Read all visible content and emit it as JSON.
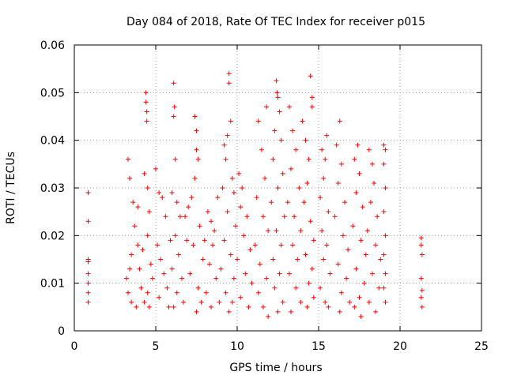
{
  "chart_data": {
    "type": "scatter",
    "title": "Day 084 of 2018, Rate Of TEC Index for receiver p015",
    "xlabel": "GPS time / hours",
    "ylabel": "ROTI / TECUs",
    "xlim": [
      0,
      25
    ],
    "ylim": [
      0,
      0.06
    ],
    "xticks": [
      "0",
      "5",
      "10",
      "15",
      "20",
      "25"
    ],
    "yticks": [
      "0",
      "0.01",
      "0.02",
      "0.03",
      "0.04",
      "0.05",
      "0.06"
    ],
    "grid": true,
    "marker": "plus",
    "color": "#ff0000",
    "series": [
      {
        "values": [
          [
            0.85,
            0.029
          ],
          [
            0.85,
            0.023
          ],
          [
            0.85,
            0.015
          ],
          [
            0.85,
            0.0145
          ],
          [
            0.85,
            0.012
          ],
          [
            0.85,
            0.01
          ],
          [
            0.85,
            0.008
          ],
          [
            0.85,
            0.006
          ],
          [
            3.3,
            0.036
          ],
          [
            3.4,
            0.032
          ],
          [
            3.6,
            0.027
          ],
          [
            3.9,
            0.026
          ],
          [
            3.7,
            0.022
          ],
          [
            3.5,
            0.016
          ],
          [
            3.4,
            0.013
          ],
          [
            3.2,
            0.011
          ],
          [
            3.3,
            0.008
          ],
          [
            3.5,
            0.006
          ],
          [
            3.8,
            0.005
          ],
          [
            4.1,
            0.009
          ],
          [
            4.0,
            0.013
          ],
          [
            3.9,
            0.018
          ],
          [
            4.4,
            0.05
          ],
          [
            4.4,
            0.048
          ],
          [
            4.45,
            0.046
          ],
          [
            4.45,
            0.044
          ],
          [
            4.3,
            0.033
          ],
          [
            4.5,
            0.03
          ],
          [
            4.6,
            0.025
          ],
          [
            4.5,
            0.02
          ],
          [
            4.2,
            0.017
          ],
          [
            4.7,
            0.014
          ],
          [
            4.8,
            0.011
          ],
          [
            4.5,
            0.008
          ],
          [
            4.3,
            0.006
          ],
          [
            4.6,
            0.005
          ],
          [
            5.0,
            0.034
          ],
          [
            5.2,
            0.029
          ],
          [
            5.4,
            0.028
          ],
          [
            5.6,
            0.024
          ],
          [
            5.1,
            0.018
          ],
          [
            5.3,
            0.015
          ],
          [
            5.5,
            0.012
          ],
          [
            5.7,
            0.009
          ],
          [
            5.2,
            0.007
          ],
          [
            5.8,
            0.005
          ],
          [
            5.9,
            0.019
          ],
          [
            6.1,
            0.052
          ],
          [
            6.15,
            0.047
          ],
          [
            6.1,
            0.045
          ],
          [
            6.2,
            0.036
          ],
          [
            6.0,
            0.029
          ],
          [
            6.3,
            0.027
          ],
          [
            6.5,
            0.024
          ],
          [
            6.2,
            0.02
          ],
          [
            6.4,
            0.016
          ],
          [
            6.0,
            0.013
          ],
          [
            6.6,
            0.011
          ],
          [
            6.3,
            0.008
          ],
          [
            6.1,
            0.005
          ],
          [
            6.7,
            0.006
          ],
          [
            6.9,
            0.019
          ],
          [
            6.8,
            0.024
          ],
          [
            7.4,
            0.045
          ],
          [
            7.5,
            0.042
          ],
          [
            7.5,
            0.038
          ],
          [
            7.6,
            0.036
          ],
          [
            7.4,
            0.032
          ],
          [
            7.2,
            0.028
          ],
          [
            7.0,
            0.026
          ],
          [
            7.7,
            0.022
          ],
          [
            7.3,
            0.018
          ],
          [
            7.9,
            0.015
          ],
          [
            7.1,
            0.012
          ],
          [
            7.6,
            0.009
          ],
          [
            7.8,
            0.006
          ],
          [
            7.5,
            0.004
          ],
          [
            8.0,
            0.019
          ],
          [
            8.2,
            0.025
          ],
          [
            8.4,
            0.023
          ],
          [
            8.6,
            0.021
          ],
          [
            8.8,
            0.028
          ],
          [
            8.5,
            0.018
          ],
          [
            8.3,
            0.014
          ],
          [
            8.7,
            0.011
          ],
          [
            8.1,
            0.008
          ],
          [
            8.9,
            0.006
          ],
          [
            8.4,
            0.005
          ],
          [
            9.2,
            0.039
          ],
          [
            9.4,
            0.041
          ],
          [
            9.5,
            0.054
          ],
          [
            9.5,
            0.052
          ],
          [
            9.6,
            0.044
          ],
          [
            9.3,
            0.036
          ],
          [
            9.7,
            0.032
          ],
          [
            9.1,
            0.03
          ],
          [
            9.8,
            0.029
          ],
          [
            9.4,
            0.025
          ],
          [
            9.9,
            0.022
          ],
          [
            9.2,
            0.019
          ],
          [
            9.6,
            0.016
          ],
          [
            9.0,
            0.013
          ],
          [
            9.8,
            0.011
          ],
          [
            9.3,
            0.008
          ],
          [
            9.7,
            0.006
          ],
          [
            9.5,
            0.004
          ],
          [
            10.1,
            0.033
          ],
          [
            10.3,
            0.03
          ],
          [
            10.2,
            0.026
          ],
          [
            10.6,
            0.024
          ],
          [
            10.4,
            0.02
          ],
          [
            10.8,
            0.017
          ],
          [
            10.0,
            0.015
          ],
          [
            10.5,
            0.012
          ],
          [
            10.9,
            0.01
          ],
          [
            10.2,
            0.007
          ],
          [
            10.7,
            0.005
          ],
          [
            11.3,
            0.044
          ],
          [
            11.5,
            0.038
          ],
          [
            11.7,
            0.032
          ],
          [
            11.2,
            0.028
          ],
          [
            11.6,
            0.024
          ],
          [
            11.9,
            0.021
          ],
          [
            11.1,
            0.018
          ],
          [
            11.4,
            0.014
          ],
          [
            11.8,
            0.011
          ],
          [
            11.3,
            0.008
          ],
          [
            11.6,
            0.005
          ],
          [
            11.9,
            0.003
          ],
          [
            11.8,
            0.047
          ],
          [
            12.4,
            0.0525
          ],
          [
            12.45,
            0.05
          ],
          [
            12.5,
            0.049
          ],
          [
            12.6,
            0.046
          ],
          [
            12.3,
            0.042
          ],
          [
            12.7,
            0.04
          ],
          [
            12.2,
            0.036
          ],
          [
            12.8,
            0.033
          ],
          [
            12.5,
            0.03
          ],
          [
            12.1,
            0.027
          ],
          [
            12.9,
            0.024
          ],
          [
            12.4,
            0.021
          ],
          [
            12.7,
            0.018
          ],
          [
            12.2,
            0.015
          ],
          [
            12.6,
            0.012
          ],
          [
            12.3,
            0.009
          ],
          [
            12.8,
            0.006
          ],
          [
            12.5,
            0.004
          ],
          [
            13.2,
            0.047
          ],
          [
            13.4,
            0.042
          ],
          [
            13.6,
            0.038
          ],
          [
            13.3,
            0.034
          ],
          [
            13.8,
            0.03
          ],
          [
            13.1,
            0.027
          ],
          [
            13.5,
            0.024
          ],
          [
            13.9,
            0.021
          ],
          [
            13.4,
            0.018
          ],
          [
            13.7,
            0.015
          ],
          [
            13.2,
            0.012
          ],
          [
            13.6,
            0.009
          ],
          [
            13.9,
            0.006
          ],
          [
            13.3,
            0.004
          ],
          [
            14.0,
            0.044
          ],
          [
            14.2,
            0.04
          ],
          [
            14.4,
            0.036
          ],
          [
            14.5,
            0.0535
          ],
          [
            14.6,
            0.049
          ],
          [
            14.6,
            0.047
          ],
          [
            14.3,
            0.031
          ],
          [
            14.1,
            0.027
          ],
          [
            14.5,
            0.023
          ],
          [
            14.7,
            0.019
          ],
          [
            14.2,
            0.016
          ],
          [
            14.6,
            0.013
          ],
          [
            14.4,
            0.01
          ],
          [
            14.7,
            0.007
          ],
          [
            14.3,
            0.005
          ],
          [
            15.2,
            0.038
          ],
          [
            15.5,
            0.041
          ],
          [
            15.4,
            0.036
          ],
          [
            15.3,
            0.032
          ],
          [
            15.1,
            0.028
          ],
          [
            15.6,
            0.025
          ],
          [
            15.2,
            0.021
          ],
          [
            15.5,
            0.018
          ],
          [
            15.3,
            0.015
          ],
          [
            15.7,
            0.012
          ],
          [
            15.1,
            0.009
          ],
          [
            15.4,
            0.006
          ],
          [
            15.6,
            0.005
          ],
          [
            16.3,
            0.044
          ],
          [
            16.1,
            0.039
          ],
          [
            16.4,
            0.035
          ],
          [
            16.2,
            0.031
          ],
          [
            16.6,
            0.027
          ],
          [
            16.0,
            0.024
          ],
          [
            16.5,
            0.02
          ],
          [
            16.8,
            0.017
          ],
          [
            16.2,
            0.014
          ],
          [
            16.7,
            0.011
          ],
          [
            16.4,
            0.008
          ],
          [
            16.9,
            0.006
          ],
          [
            16.3,
            0.004
          ],
          [
            17.2,
            0.036
          ],
          [
            17.4,
            0.039
          ],
          [
            17.5,
            0.033
          ],
          [
            17.3,
            0.029
          ],
          [
            17.7,
            0.026
          ],
          [
            17.1,
            0.022
          ],
          [
            17.6,
            0.019
          ],
          [
            17.9,
            0.016
          ],
          [
            17.3,
            0.013
          ],
          [
            17.8,
            0.01
          ],
          [
            17.5,
            0.007
          ],
          [
            17.2,
            0.005
          ],
          [
            17.6,
            0.003
          ],
          [
            18.1,
            0.038
          ],
          [
            18.3,
            0.035
          ],
          [
            18.4,
            0.031
          ],
          [
            18.2,
            0.027
          ],
          [
            18.6,
            0.024
          ],
          [
            18.0,
            0.021
          ],
          [
            18.5,
            0.018
          ],
          [
            18.8,
            0.015
          ],
          [
            18.3,
            0.012
          ],
          [
            18.7,
            0.009
          ],
          [
            18.1,
            0.006
          ],
          [
            18.5,
            0.004
          ],
          [
            19.0,
            0.039
          ],
          [
            19.1,
            0.038
          ],
          [
            19.0,
            0.035
          ],
          [
            19.1,
            0.03
          ],
          [
            19.0,
            0.025
          ],
          [
            19.1,
            0.02
          ],
          [
            19.0,
            0.016
          ],
          [
            19.1,
            0.012
          ],
          [
            19.0,
            0.009
          ],
          [
            19.1,
            0.006
          ],
          [
            21.3,
            0.0195
          ],
          [
            21.3,
            0.018
          ],
          [
            21.35,
            0.016
          ],
          [
            21.3,
            0.011
          ],
          [
            21.35,
            0.0085
          ],
          [
            21.3,
            0.007
          ],
          [
            21.35,
            0.005
          ]
        ]
      }
    ]
  }
}
